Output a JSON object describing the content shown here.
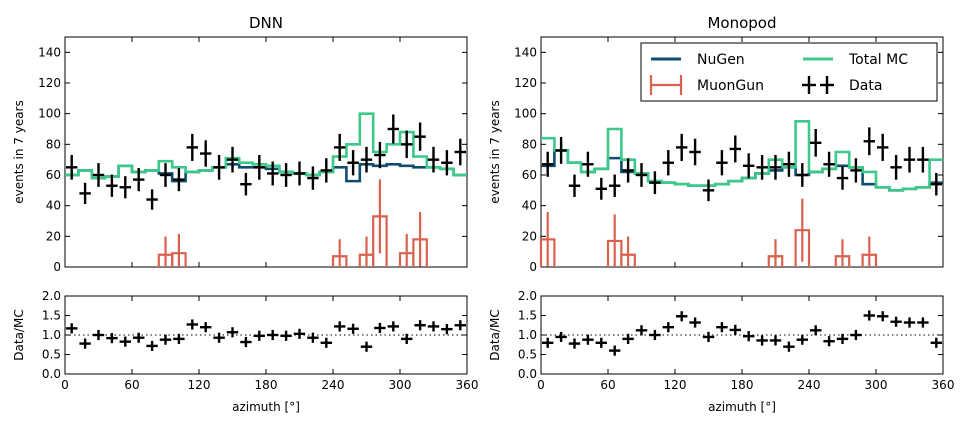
{
  "chart_data": [
    {
      "type": "histogram-with-errorbars",
      "title": "DNN",
      "ylabel": "events in 7 years",
      "ylim": [
        0,
        150
      ],
      "yticks": [
        0,
        20,
        40,
        60,
        80,
        100,
        120,
        140
      ],
      "xlim": [
        0,
        360
      ],
      "bin_edges": [
        0,
        12,
        24,
        36,
        48,
        60,
        72,
        84,
        96,
        108,
        120,
        132,
        144,
        156,
        168,
        180,
        192,
        204,
        216,
        228,
        240,
        252,
        264,
        276,
        288,
        300,
        312,
        324,
        336,
        348,
        360
      ],
      "series": [
        {
          "name": "NuGen",
          "color": "#0f4c6e",
          "values": [
            60,
            63,
            58,
            59,
            66,
            62,
            63,
            61,
            56,
            62,
            63,
            65,
            67,
            65,
            65,
            64,
            62,
            61,
            60,
            62,
            65,
            56,
            67,
            66,
            67,
            66,
            65,
            65,
            64,
            60
          ]
        },
        {
          "name": "MuonGun",
          "color": "#d8624e",
          "values": [
            0,
            0,
            0,
            0,
            0,
            0,
            0,
            8,
            9,
            0,
            0,
            0,
            0,
            0,
            0,
            0,
            0,
            0,
            0,
            0,
            7,
            0,
            8,
            33,
            0,
            9,
            18,
            0,
            0,
            0
          ]
        },
        {
          "name": "Total MC",
          "color": "#3cc98a",
          "values": [
            60,
            63,
            58,
            59,
            66,
            62,
            63,
            69,
            65,
            62,
            63,
            65,
            71,
            68,
            67,
            66,
            62,
            61,
            60,
            62,
            72,
            80,
            100,
            75,
            80,
            88,
            72,
            65,
            64,
            60
          ]
        },
        {
          "name": "Data",
          "color": "#000000",
          "x": [
            6,
            18,
            30,
            42,
            54,
            66,
            78,
            90,
            102,
            114,
            126,
            138,
            150,
            162,
            174,
            186,
            198,
            210,
            222,
            234,
            246,
            258,
            270,
            282,
            294,
            306,
            318,
            330,
            342,
            354
          ],
          "values": [
            65,
            48,
            60,
            53,
            52,
            57,
            44,
            60,
            57,
            78,
            74,
            65,
            70,
            54,
            65,
            61,
            60,
            61,
            58,
            63,
            78,
            68,
            70,
            73,
            90,
            80,
            85,
            70,
            68,
            75
          ]
        }
      ],
      "ratio_panel": {
        "ylabel": "Data/MC",
        "ylim": [
          0,
          2
        ],
        "yticks": [
          0.0,
          0.5,
          1.0,
          1.5,
          2.0
        ],
        "reference_line": 1.0,
        "values": [
          1.17,
          0.78,
          1.0,
          0.92,
          0.83,
          0.93,
          0.72,
          0.88,
          0.9,
          1.27,
          1.2,
          0.93,
          1.07,
          0.82,
          0.98,
          1.0,
          0.98,
          1.03,
          0.93,
          0.8,
          1.22,
          1.16,
          0.7,
          1.18,
          1.22,
          0.9,
          1.25,
          1.22,
          1.15,
          1.25
        ]
      },
      "xlabel": "azimuth [°]",
      "xticks": [
        0,
        60,
        120,
        180,
        240,
        300,
        360
      ]
    },
    {
      "type": "histogram-with-errorbars",
      "title": "Monopod",
      "ylabel": "events in 7 years",
      "ylim": [
        0,
        150
      ],
      "yticks": [
        0,
        20,
        40,
        60,
        80,
        100,
        120,
        140
      ],
      "xlim": [
        0,
        360
      ],
      "bin_edges": [
        0,
        12,
        24,
        36,
        48,
        60,
        72,
        84,
        96,
        108,
        120,
        132,
        144,
        156,
        168,
        180,
        192,
        204,
        216,
        228,
        240,
        252,
        264,
        276,
        288,
        300,
        312,
        324,
        336,
        348,
        360
      ],
      "legend": {
        "placement": "top-right",
        "entries": [
          "NuGen",
          "Total MC",
          "MuonGun",
          "Data"
        ]
      },
      "series": [
        {
          "name": "NuGen",
          "color": "#0f4c6e",
          "values": [
            66,
            76,
            68,
            62,
            64,
            71,
            62,
            61,
            56,
            55,
            54,
            53,
            53,
            54,
            56,
            58,
            61,
            63,
            65,
            60,
            62,
            64,
            66,
            65,
            54,
            52,
            50,
            51,
            52,
            55
          ]
        },
        {
          "name": "MuonGun",
          "color": "#d8624e",
          "values": [
            18,
            0,
            0,
            0,
            0,
            17,
            8,
            0,
            0,
            0,
            0,
            0,
            0,
            0,
            0,
            0,
            0,
            7,
            0,
            24,
            0,
            0,
            7,
            0,
            8,
            0,
            0,
            0,
            0,
            0
          ]
        },
        {
          "name": "Total MC",
          "color": "#3cc98a",
          "values": [
            84,
            76,
            68,
            62,
            64,
            90,
            70,
            61,
            56,
            55,
            54,
            53,
            53,
            54,
            56,
            58,
            61,
            70,
            65,
            95,
            62,
            64,
            75,
            65,
            62,
            52,
            50,
            51,
            52,
            70
          ]
        },
        {
          "name": "Data",
          "color": "#000000",
          "x": [
            6,
            18,
            30,
            42,
            54,
            66,
            78,
            90,
            102,
            114,
            126,
            138,
            150,
            162,
            174,
            186,
            198,
            210,
            222,
            234,
            246,
            258,
            270,
            282,
            294,
            306,
            318,
            330,
            342,
            354
          ],
          "values": [
            67,
            76,
            53,
            67,
            51,
            53,
            63,
            60,
            55,
            68,
            78,
            75,
            50,
            68,
            77,
            66,
            65,
            65,
            67,
            60,
            81,
            67,
            58,
            63,
            82,
            78,
            65,
            70,
            70,
            54
          ]
        }
      ],
      "ratio_panel": {
        "ylabel": "Data/MC",
        "ylim": [
          0,
          2
        ],
        "yticks": [
          0.0,
          0.5,
          1.0,
          1.5,
          2.0
        ],
        "reference_line": 1.0,
        "values": [
          0.8,
          0.95,
          0.78,
          0.88,
          0.8,
          0.6,
          0.9,
          1.12,
          1.0,
          1.2,
          1.48,
          1.32,
          0.95,
          1.2,
          1.13,
          0.97,
          0.86,
          0.86,
          0.7,
          0.88,
          1.12,
          0.84,
          0.9,
          1.0,
          1.5,
          1.48,
          1.34,
          1.32,
          1.32,
          0.8
        ]
      },
      "xlabel": "azimuth [°]",
      "xticks": [
        0,
        60,
        120,
        180,
        240,
        300,
        360
      ]
    }
  ]
}
